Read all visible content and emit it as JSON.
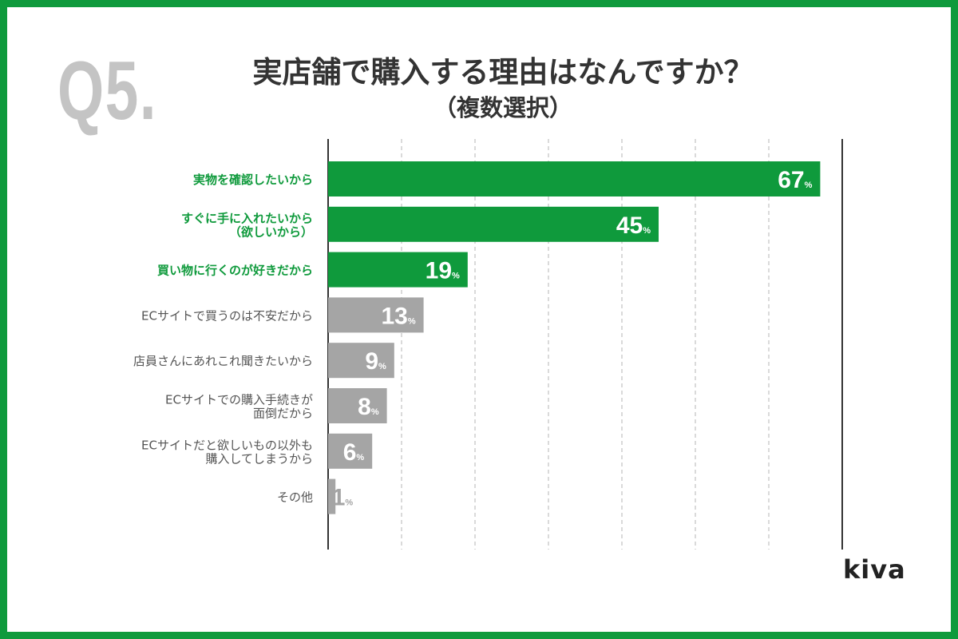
{
  "header": {
    "question_number": "Q5.",
    "title": "実店舗で購入する理由はなんですか？",
    "subtitle": "（複数選択）"
  },
  "brand": {
    "logo_text": "kiva"
  },
  "colors": {
    "frame": "#0f9a3c",
    "highlight_bar": "#0f9a3c",
    "normal_bar": "#a5a5a5",
    "highlight_label": "#0f9a3c",
    "normal_label": "#555555",
    "question_number": "#c4c4c4"
  },
  "chart_data": {
    "type": "bar",
    "orientation": "horizontal",
    "value_unit": "%",
    "xlim": [
      0,
      70
    ],
    "grid": true,
    "categories": [
      [
        "実物を確認したいから"
      ],
      [
        "すぐに手に入れたいから",
        "（欲しいから）"
      ],
      [
        "買い物に行くのが好きだから"
      ],
      [
        "ECサイトで買うのは不安だから"
      ],
      [
        "店員さんにあれこれ聞きたいから"
      ],
      [
        "ECサイトでの購入手続きが",
        "面倒だから"
      ],
      [
        "ECサイトだと欲しいもの以外も",
        "購入してしまうから"
      ],
      [
        "その他"
      ]
    ],
    "values": [
      67,
      45,
      19,
      13,
      9,
      8,
      6,
      1
    ],
    "highlighted": [
      true,
      true,
      true,
      false,
      false,
      false,
      false,
      false
    ]
  }
}
